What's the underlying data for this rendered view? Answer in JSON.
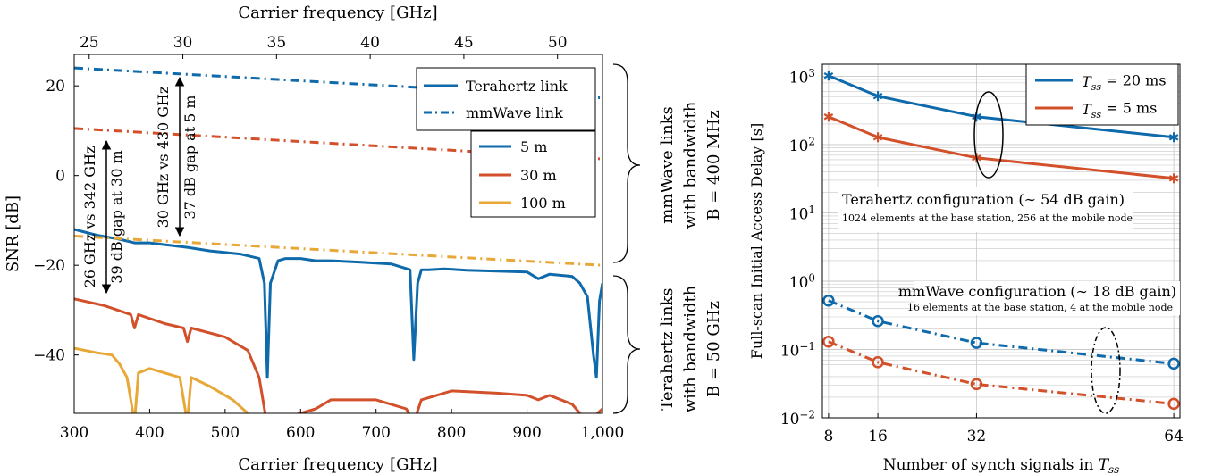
{
  "chart_data": [
    {
      "type": "line",
      "xlabel": "Carrier frequency [GHz]",
      "x2label": "Carrier frequency [GHz]",
      "ylabel": "SNR [dB]",
      "xlim": [
        300,
        1000
      ],
      "x2lim": [
        24.2,
        52.4
      ],
      "ylim": [
        -53,
        27
      ],
      "xticks": [
        "300",
        "400",
        "500",
        "600",
        "700",
        "800",
        "900",
        "1,000"
      ],
      "x2ticks": [
        "25",
        "30",
        "35",
        "40",
        "45",
        "50"
      ],
      "yticks": [
        "20",
        "0",
        "−20",
        "−40"
      ],
      "grid": false,
      "legend_link": [
        {
          "label": "Terahertz link",
          "style": "solid"
        },
        {
          "label": "mmWave link",
          "style": "dashdot"
        }
      ],
      "legend_distance": [
        {
          "label": "5 m",
          "color": "#0e6aab"
        },
        {
          "label": "30 m",
          "color": "#d2502a"
        },
        {
          "label": "100 m",
          "color": "#e8a838"
        }
      ],
      "series": [
        {
          "name": "5 m",
          "link": "Terahertz",
          "color": "#0e6aab",
          "x": [
            300,
            330,
            360,
            380,
            400,
            420,
            450,
            480,
            520,
            545,
            552,
            556,
            560,
            570,
            580,
            600,
            620,
            640,
            680,
            720,
            745,
            750,
            755,
            760,
            770,
            790,
            820,
            860,
            900,
            915,
            930,
            960,
            970,
            980,
            988,
            992,
            996,
            1000
          ],
          "y": [
            -12,
            -13.3,
            -14.2,
            -15,
            -15,
            -15.4,
            -16,
            -16.8,
            -17.5,
            -18.5,
            -24,
            -45,
            -24,
            -19,
            -18.5,
            -18.5,
            -19,
            -19,
            -19.3,
            -19.7,
            -21,
            -41,
            -24,
            -21,
            -21,
            -20.8,
            -21.1,
            -21.3,
            -21.5,
            -23,
            -22,
            -22.5,
            -24,
            -27,
            -40,
            -45,
            -28,
            -24
          ]
        },
        {
          "name": "30 m",
          "link": "Terahertz",
          "color": "#d2502a",
          "x": [
            300,
            340,
            375,
            380,
            385,
            420,
            445,
            450,
            455,
            500,
            530,
            545,
            555,
            600,
            620,
            640,
            700,
            740,
            750,
            760,
            800,
            860,
            900,
            915,
            930,
            960,
            980,
            1000
          ],
          "y": [
            -27.5,
            -29,
            -31,
            -34,
            -31,
            -33,
            -34,
            -37,
            -34,
            -36,
            -39,
            -45,
            -55,
            -53,
            -52,
            -50,
            -50,
            -52,
            -55,
            -50,
            -48,
            -48.5,
            -49,
            -50,
            -49,
            -51,
            -55,
            -52
          ]
        },
        {
          "name": "100 m",
          "link": "Terahertz",
          "color": "#e8a838",
          "x": [
            300,
            330,
            350,
            360,
            370,
            380,
            385,
            400,
            440,
            450,
            455,
            480,
            510,
            530,
            540
          ],
          "y": [
            -38.5,
            -39.5,
            -40,
            -42,
            -45,
            -55,
            -44,
            -43,
            -45,
            -55,
            -45,
            -47,
            -50,
            -53,
            -55
          ]
        },
        {
          "name": "5 m",
          "link": "mmWave",
          "color": "#0e6aab",
          "x": [
            24.2,
            52.4
          ],
          "y": [
            24,
            17.3
          ]
        },
        {
          "name": "30 m",
          "link": "mmWave",
          "color": "#d2502a",
          "x": [
            24.2,
            52.4
          ],
          "y": [
            10.5,
            3.7
          ]
        },
        {
          "name": "100 m",
          "link": "mmWave",
          "color": "#e8a838",
          "x": [
            24.2,
            52.4
          ],
          "y": [
            -13.5,
            -20
          ]
        }
      ],
      "annotations": [
        {
          "lines": [
            "26 GHz vs 342 GHz",
            "39 dB gap at 30 m"
          ]
        },
        {
          "lines": [
            "30 GHz vs 430 GHz",
            "37 dB gap at 5 m"
          ]
        }
      ],
      "brace_labels": [
        {
          "lines": [
            "mmWave links",
            "with bandwidth",
            "B = 400 MHz"
          ]
        },
        {
          "lines": [
            "Terahertz links",
            "with bandwidth",
            "B = 50 GHz"
          ]
        }
      ]
    },
    {
      "type": "line",
      "xlabel": "Number of synch signals in T_ss",
      "ylabel": "Full-scan Initial Access Delay [s]",
      "xlim": [
        7,
        65
      ],
      "ylim": [
        0.01,
        1500
      ],
      "yscale": "log",
      "xticks": [
        "8",
        "16",
        "32",
        "64"
      ],
      "yticks": [
        "10^3",
        "10^2",
        "10^1",
        "10^0",
        "10^−1",
        "10^−2"
      ],
      "grid": true,
      "legend": [
        "T_ss = 20 ms",
        "T_ss = 5 ms"
      ],
      "series": [
        {
          "name": "T_ss = 20 ms",
          "config": "Terahertz",
          "color": "#0e6aab",
          "x": [
            8,
            16,
            32,
            64
          ],
          "y": [
            1024,
            512,
            256,
            128
          ]
        },
        {
          "name": "T_ss = 5 ms",
          "config": "Terahertz",
          "color": "#d2502a",
          "x": [
            8,
            16,
            32,
            64
          ],
          "y": [
            256,
            128,
            64,
            32
          ]
        },
        {
          "name": "T_ss = 20 ms",
          "config": "mmWave",
          "color": "#0e6aab",
          "x": [
            8,
            16,
            32,
            64
          ],
          "y": [
            0.52,
            0.26,
            0.125,
            0.062
          ]
        },
        {
          "name": "T_ss = 5 ms",
          "config": "mmWave",
          "color": "#d2502a",
          "x": [
            8,
            16,
            32,
            64
          ],
          "y": [
            0.13,
            0.065,
            0.031,
            0.016
          ]
        }
      ],
      "annotations": [
        {
          "title": "Terahertz configuration (∼ 54 dB gain)",
          "sub": "1024 elements at the base station, 256 at the mobile node"
        },
        {
          "title": "mmWave configuration (∼ 18 dB gain)",
          "sub": "16 elements at the base station, 4 at the mobile node"
        }
      ]
    }
  ]
}
